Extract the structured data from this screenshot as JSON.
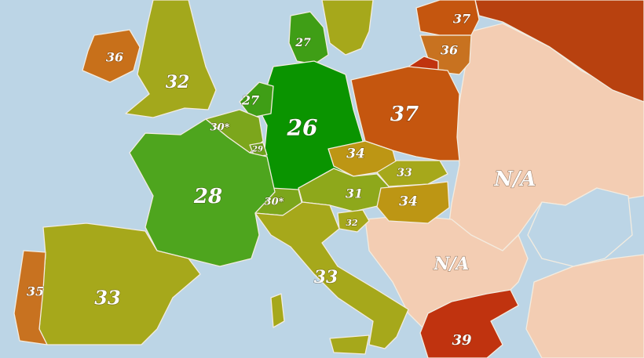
{
  "colors": {
    "sea": "#bcd5e6",
    "na": "#f3cdb3",
    "green_dark": "#0a9400",
    "green": "#4ea51e",
    "green_olive": "#7ca61c",
    "olive": "#a6a81b",
    "amber": "#bd9614",
    "orange": "#c87220",
    "red_orange": "#c5560f",
    "red": "#bf3512"
  },
  "countries": {
    "ireland": "36",
    "uk": "32",
    "france": "28",
    "spain": "33",
    "portugal": "35",
    "germany": "26",
    "netherlands": "27",
    "belgium": "30*",
    "luxembourg": "29",
    "denmark": "27",
    "poland": "37",
    "czechia": "34",
    "slovakia": "33",
    "hungary": "34",
    "austria": "31",
    "slovenia": "32",
    "switzerland": "30*",
    "italy": "33",
    "latvia": "37",
    "lithuania": "36",
    "greece": "39",
    "eastern_europe": "N/A",
    "balkans": "N/A"
  }
}
